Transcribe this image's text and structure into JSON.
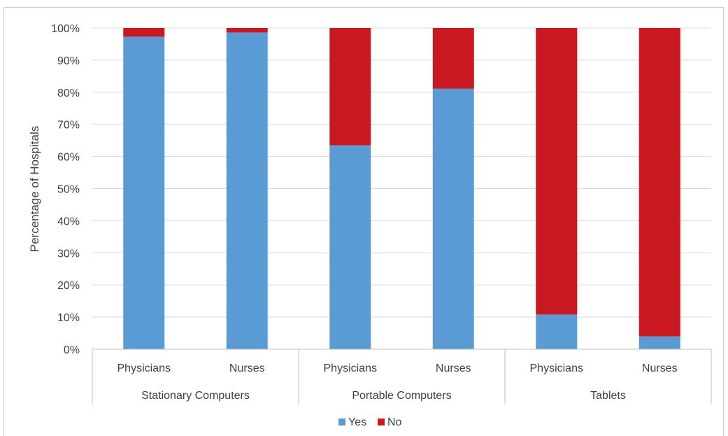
{
  "chart_data": {
    "type": "bar",
    "stacked": true,
    "ylabel": "Percentage of Hospitals",
    "ylim": [
      0,
      100
    ],
    "yticks": [
      "0%",
      "10%",
      "20%",
      "30%",
      "40%",
      "50%",
      "60%",
      "70%",
      "80%",
      "90%",
      "100%"
    ],
    "groups": [
      "Stationary Computers",
      "Portable Computers",
      "Tablets"
    ],
    "categories": [
      "Physicians",
      "Nurses",
      "Physicians",
      "Nurses",
      "Physicians",
      "Nurses"
    ],
    "category_group": [
      0,
      0,
      1,
      1,
      2,
      2
    ],
    "series": [
      {
        "name": "Yes",
        "color": "#5b9bd5",
        "values": [
          97.3,
          98.6,
          63.5,
          81.1,
          10.8,
          4.0
        ]
      },
      {
        "name": "No",
        "color": "#c9181f",
        "values": [
          2.7,
          1.4,
          36.5,
          18.9,
          89.2,
          96.0
        ]
      }
    ],
    "grid": true,
    "legend_position": "bottom-center"
  }
}
